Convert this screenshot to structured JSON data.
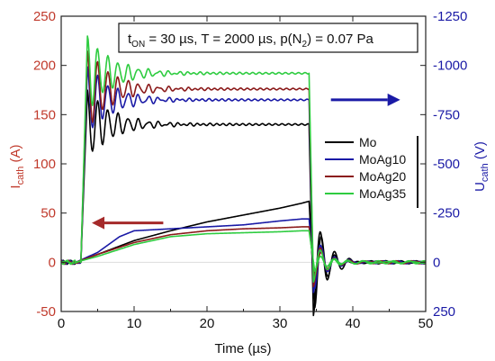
{
  "chart_data": {
    "type": "line",
    "annotation": {
      "t_main": "t",
      "t_sub": "ON",
      "t_rest": " = 30 µs, T = 2000 µs, p(N",
      "n_sub": "2",
      "n_rest": ") = 0.07 Pa"
    },
    "xaxis": {
      "label": "Time (µs)",
      "range": [
        0,
        50
      ],
      "ticks": [
        0,
        10,
        20,
        30,
        40,
        50
      ]
    },
    "yaxis_left": {
      "label_main": "I",
      "label_sub": "cath",
      "label_unit": " (A)",
      "range": [
        -50,
        250
      ],
      "ticks": [
        -50,
        0,
        50,
        100,
        150,
        200,
        250
      ],
      "color": "#c0392b"
    },
    "yaxis_right": {
      "label_main": "U",
      "label_sub": "cath",
      "label_unit": " (V)",
      "range": [
        250,
        -1250
      ],
      "ticks": [
        250,
        0,
        -250,
        -500,
        -750,
        -1000,
        -1250
      ],
      "tick_labels": [
        "250",
        "0",
        "-250",
        "-500",
        "-750",
        "-1000",
        "-1250"
      ],
      "color": "#1a1aa6"
    },
    "legend": {
      "placement": "right-middle",
      "entries": [
        "Mo",
        "MoAg10",
        "MoAg20",
        "MoAg35"
      ]
    },
    "series": [
      {
        "name": "Mo",
        "color": "#000000",
        "voltage": {
          "pulse_level": -700,
          "peak": -875,
          "rise": 3,
          "end": 34,
          "dip_after": 270
        },
        "current": {
          "x": [
            0,
            2,
            5,
            10,
            15,
            20,
            25,
            30,
            33,
            34
          ],
          "y": [
            0,
            0,
            8,
            22,
            32,
            41,
            48,
            55,
            60,
            62
          ],
          "undershoot": -45
        }
      },
      {
        "name": "MoAg10",
        "color": "#1a1aa6",
        "voltage": {
          "pulse_level": -825,
          "peak": -1000,
          "rise": 3,
          "end": 34,
          "dip_after": 150
        },
        "current": {
          "x": [
            0,
            2,
            5,
            8,
            10,
            15,
            20,
            25,
            30,
            33,
            34
          ],
          "y": [
            0,
            0,
            10,
            26,
            32,
            34,
            36,
            38,
            42,
            44,
            44
          ],
          "undershoot": -25
        }
      },
      {
        "name": "MoAg20",
        "color": "#8b1a1a",
        "voltage": {
          "pulse_level": -880,
          "peak": -1080,
          "rise": 3,
          "end": 34,
          "dip_after": 120
        },
        "current": {
          "x": [
            0,
            2,
            5,
            10,
            15,
            20,
            25,
            30,
            33,
            34
          ],
          "y": [
            0,
            0,
            8,
            20,
            28,
            32,
            34,
            35,
            36,
            36
          ],
          "undershoot": -15
        }
      },
      {
        "name": "MoAg35",
        "color": "#2ecc40",
        "voltage": {
          "pulse_level": -960,
          "peak": -1150,
          "rise": 3,
          "end": 34,
          "dip_after": 100
        },
        "current": {
          "x": [
            0,
            2,
            5,
            10,
            15,
            20,
            25,
            30,
            33,
            34
          ],
          "y": [
            0,
            0,
            6,
            18,
            26,
            29,
            30,
            31,
            32,
            32
          ],
          "undershoot": -10
        }
      }
    ],
    "arrows": [
      {
        "direction": "left",
        "color": "#a52a2a",
        "from_x": 14.0,
        "to_x": 4.2,
        "y_left": 40
      },
      {
        "direction": "right",
        "color": "#1a1aa6",
        "from_x": 37.0,
        "to_x": 46.5,
        "y_left": 165
      }
    ]
  }
}
